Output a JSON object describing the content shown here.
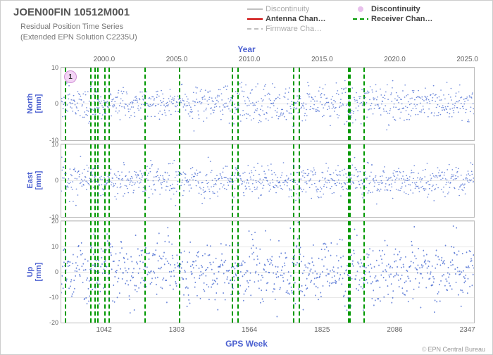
{
  "title": "JOEN00FIN 10512M001",
  "subtitle_line1": "Residual Position Time Series",
  "subtitle_line2": "(Extended EPN Solution C2235U)",
  "top_axis": {
    "title": "Year",
    "ticks": [
      2000.0,
      2005.0,
      2010.0,
      2015.0,
      2020.0,
      2025.0
    ],
    "min": 1997.0,
    "max": 2025.5
  },
  "bottom_axis": {
    "title": "GPS Week",
    "ticks": [
      1042,
      1303,
      1564,
      1825,
      2086,
      2347
    ],
    "min": 886,
    "max": 2373
  },
  "legend": [
    {
      "label": "Discontinuity",
      "type": "line",
      "color": "#c0c0c0",
      "dash": "none",
      "bold": false
    },
    {
      "label": "Discontinuity",
      "type": "marker",
      "color": "#e8c0ec",
      "bold": true
    },
    {
      "label": "Antenna Chan…",
      "type": "line",
      "color": "#cc0000",
      "dash": "none",
      "bold": true
    },
    {
      "label": "Receiver Chan…",
      "type": "line",
      "color": "#009900",
      "dash": "6,4",
      "bold": true
    },
    {
      "label": "Firmware Cha…",
      "type": "line",
      "color": "#c0c0c0",
      "dash": "6,4",
      "bold": false
    }
  ],
  "panels": [
    {
      "name": "north",
      "ylabel_line1": "North",
      "ylabel_line2": "[mm]",
      "ymin": -10,
      "ymax": 10,
      "yticks": [
        -10,
        0,
        10
      ],
      "flex": 1,
      "badge": "1",
      "noise_amp": 2.5,
      "seasonal_amp": 0.5
    },
    {
      "name": "east",
      "ylabel_line1": "East",
      "ylabel_line2": "[mm]",
      "ymin": -10,
      "ymax": 10,
      "yticks": [
        -10,
        0,
        10
      ],
      "flex": 1,
      "noise_amp": 2.2,
      "seasonal_amp": 0.8
    },
    {
      "name": "up",
      "ylabel_line1": "Up",
      "ylabel_line2": "[mm]",
      "ymin": -20,
      "ymax": 20,
      "yticks": [
        -20,
        -10,
        0,
        10,
        20
      ],
      "flex": 1.4,
      "noise_amp": 6.0,
      "seasonal_amp": 3.0
    }
  ],
  "vlines_receiver": {
    "color": "#009900",
    "positions_week": [
      898,
      990,
      1005,
      1015,
      1040,
      1055,
      1185,
      1310,
      1500,
      1520,
      1720,
      1740,
      1918,
      1925,
      1975
    ]
  },
  "colors": {
    "scatter": "#3a5fcd",
    "grid": "#e8e8e8",
    "axis": "#bbbbbb",
    "text_muted": "#777777",
    "accent": "#4a5fd0",
    "background": "#ffffff"
  },
  "scatter": {
    "n_points": 900,
    "marker_size": 1.5
  },
  "footer": "EPN Central Bureau"
}
